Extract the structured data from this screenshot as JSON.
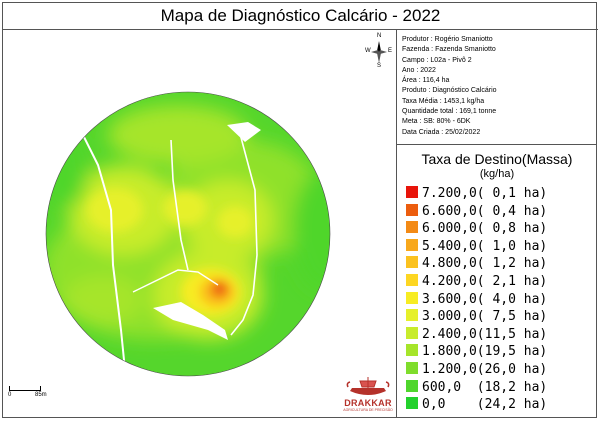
{
  "title": "Mapa de Diagnóstico Calcário - 2022",
  "info": {
    "produtor": "Produtor : Rogério Smaniotto",
    "fazenda": "Fazenda : Fazenda Smaniotto",
    "campo": "Campo : L02a - Pivô 2",
    "ano": "Ano : 2022",
    "area": "Área : 116,4 ha",
    "produto": "Produto : Diagnóstico Calcário",
    "taxa_media": "Taxa Média : 1453,1 kg/ha",
    "quantidade": "Quantidade total : 169,1 tonne",
    "meta": "Meta : SB: 80% - 6DK",
    "data": "Data Criada : 25/02/2022"
  },
  "compass": {
    "n": "N",
    "s": "S",
    "e": "E",
    "w": "W"
  },
  "scale": {
    "start": "0",
    "end": "85m"
  },
  "logo": {
    "brand": "DRAKKAR",
    "tagline": "AGRICULTURA DE PRECISÃO"
  },
  "legend": {
    "title": "Taxa de Destino(Massa)",
    "unit": "(kg/ha)",
    "items": [
      {
        "label": "7.200,0( 0,1 ha)",
        "color": "#e8140a"
      },
      {
        "label": "6.600,0( 0,4 ha)",
        "color": "#ec5d0e"
      },
      {
        "label": "6.000,0( 0,8 ha)",
        "color": "#f38a15"
      },
      {
        "label": "5.400,0( 1,0 ha)",
        "color": "#f8a81c"
      },
      {
        "label": "4.800,0( 1,2 ha)",
        "color": "#fbc21f"
      },
      {
        "label": "4.200,0( 2,1 ha)",
        "color": "#fdd622"
      },
      {
        "label": "3.600,0( 4,0 ha)",
        "color": "#f7ec23"
      },
      {
        "label": "3.000,0( 7,5 ha)",
        "color": "#e6f02a"
      },
      {
        "label": "2.400,0(11,5 ha)",
        "color": "#c8ec2c"
      },
      {
        "label": "1.800,0(19,5 ha)",
        "color": "#a6e52a"
      },
      {
        "label": "1.200,0(26,0 ha)",
        "color": "#7fdd2c"
      },
      {
        "label": "600,0  (18,2 ha)",
        "color": "#4fd62c"
      },
      {
        "label": "0,0    (24,2 ha)",
        "color": "#23d12c"
      }
    ]
  }
}
